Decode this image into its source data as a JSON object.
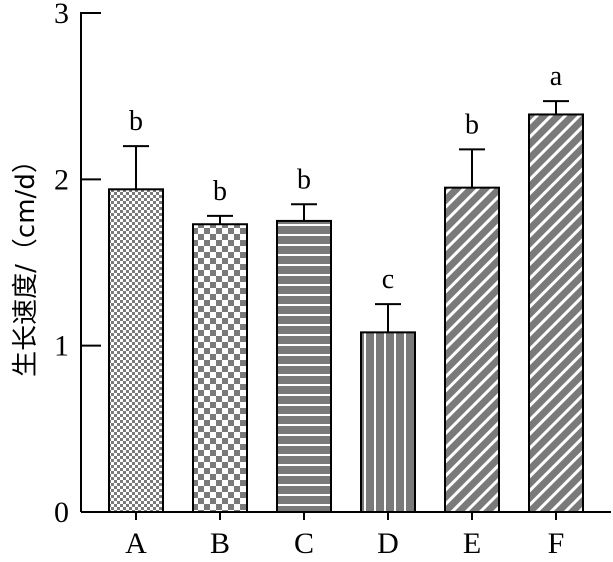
{
  "chart_data": {
    "type": "bar",
    "title": "",
    "xlabel": "",
    "ylabel": "生长速度/（cm/d）",
    "ylim": [
      0,
      3
    ],
    "yticks": [
      0,
      1,
      2,
      3
    ],
    "categories": [
      "A",
      "B",
      "C",
      "D",
      "E",
      "F"
    ],
    "values": [
      1.94,
      1.73,
      1.75,
      1.08,
      1.95,
      2.39
    ],
    "errors": [
      0.26,
      0.05,
      0.1,
      0.17,
      0.23,
      0.08
    ],
    "significance": [
      "b",
      "b",
      "b",
      "c",
      "b",
      "a"
    ],
    "patterns": [
      "fine-checker",
      "coarse-checker",
      "horizontal-stripes",
      "vertical-stripes",
      "diagonal-stripes",
      "diagonal-stripes"
    ],
    "colors": {
      "bar_dark": "#7a7a7a",
      "bar_light": "#ffffff",
      "axis": "#000000"
    },
    "grid": false
  }
}
